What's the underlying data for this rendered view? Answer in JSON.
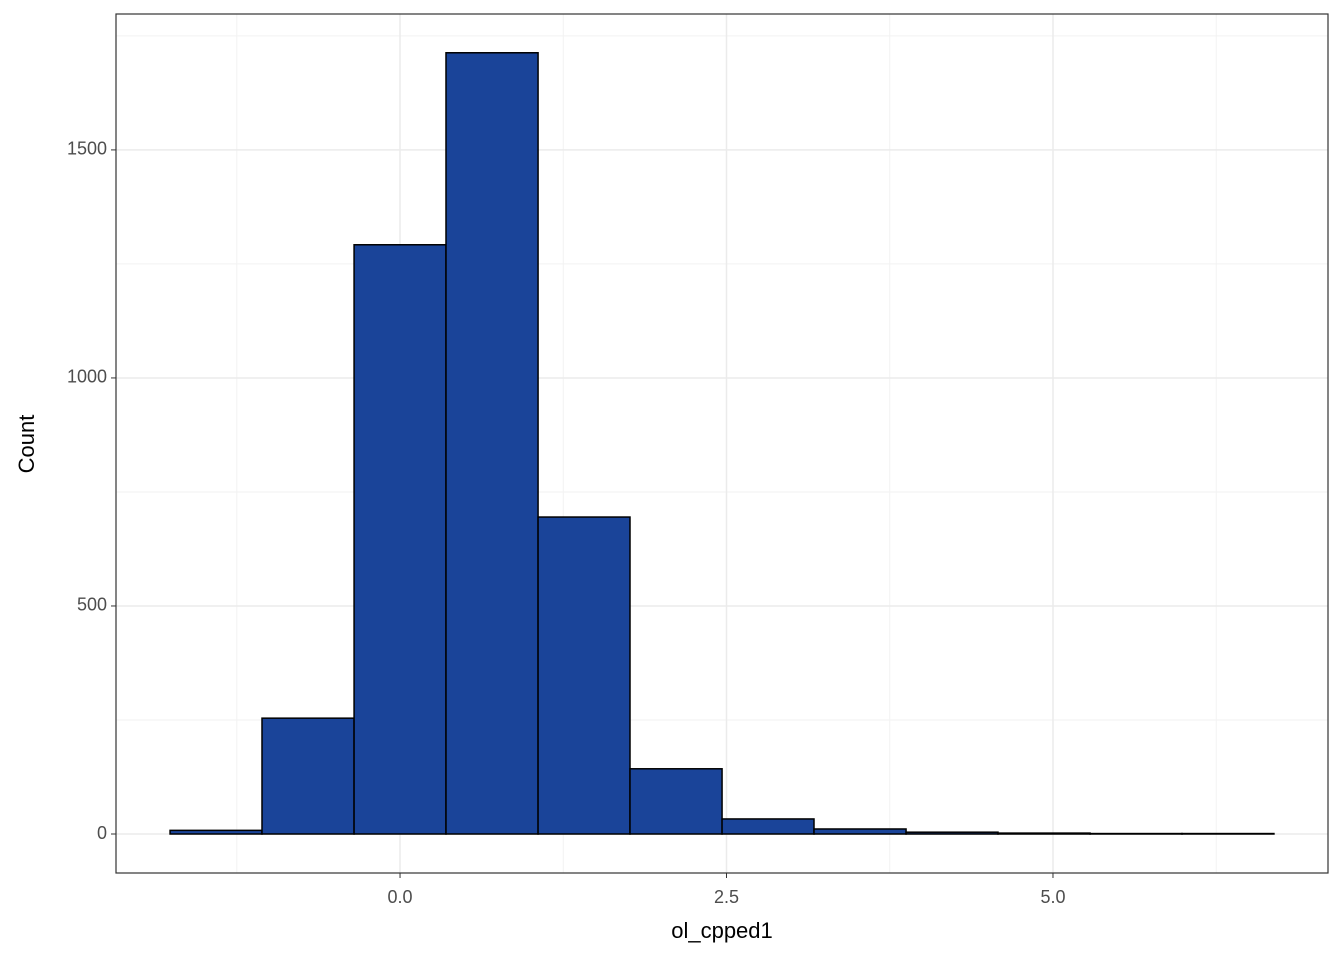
{
  "chart_data": {
    "type": "histogram",
    "xlabel": "ol_cpped1",
    "ylabel": "Count",
    "bins": [
      -1.761,
      -1.057,
      -0.352,
      0.352,
      1.057,
      1.761,
      2.466,
      3.17,
      3.875,
      4.579,
      5.284,
      5.988,
      6.692
    ],
    "values": [
      8,
      254,
      1292,
      1713,
      695,
      143,
      33,
      11,
      4,
      2,
      1,
      1
    ],
    "color": "#1a4499",
    "edgecolor": "#000000",
    "xlim": [
      -2.175,
      7.106
    ],
    "ylim": [
      -85.5,
      1798
    ],
    "xticks": [
      {
        "value": 0,
        "label": "0.0"
      },
      {
        "value": 2.5,
        "label": "2.5"
      },
      {
        "value": 5,
        "label": "5.0"
      }
    ],
    "yticks": [
      0,
      500,
      1000,
      1500
    ],
    "x_minor_grid": [
      -1.25,
      1.25,
      3.75,
      6.25
    ],
    "y_minor_grid": [
      250,
      750,
      1250,
      1750
    ],
    "grid": true
  }
}
